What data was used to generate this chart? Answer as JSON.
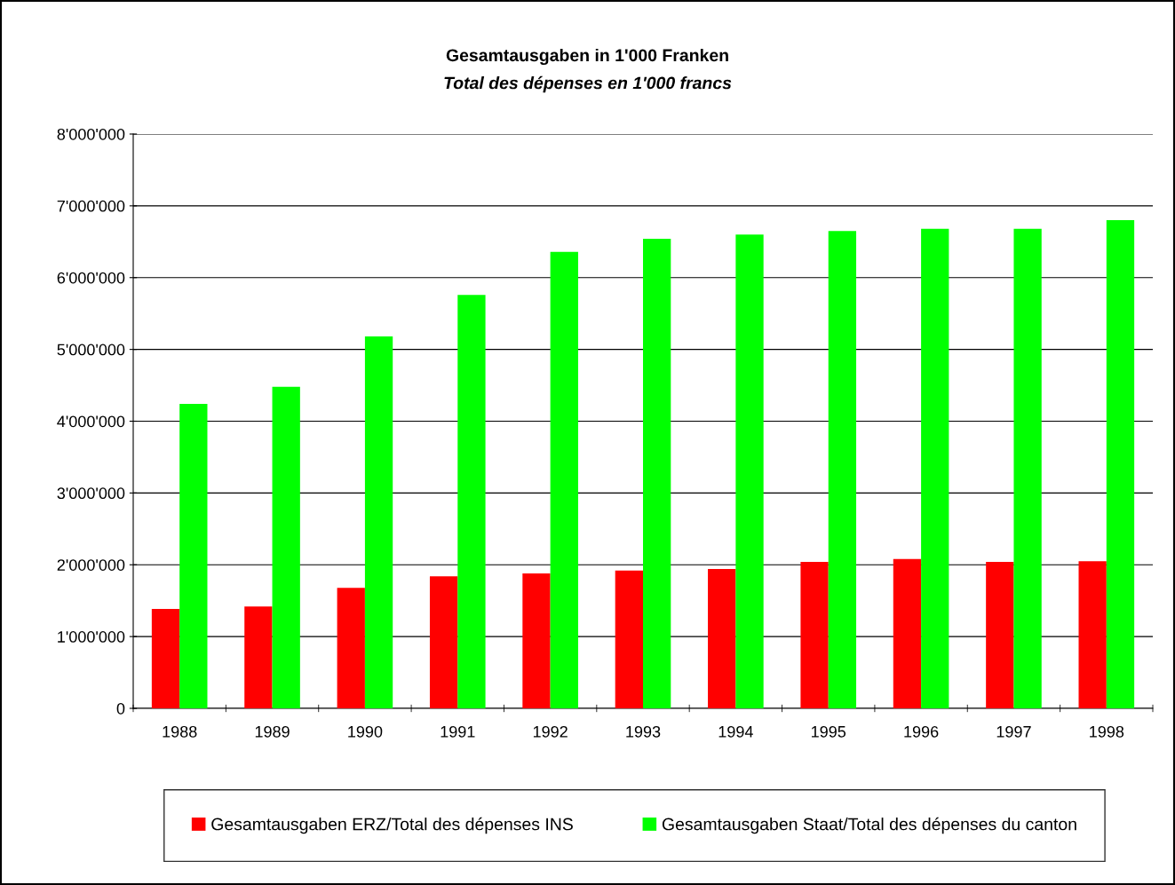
{
  "chart_data": {
    "type": "bar",
    "title": "Gesamtausgaben in 1'000 Franken",
    "subtitle": "Total des dépenses en 1'000 francs",
    "categories": [
      "1988",
      "1989",
      "1990",
      "1991",
      "1992",
      "1993",
      "1994",
      "1995",
      "1996",
      "1997",
      "1998"
    ],
    "series": [
      {
        "name": "Gesamtausgaben ERZ/Total des dépenses INS",
        "color": "#ff0000",
        "values": [
          1385000,
          1420000,
          1680000,
          1840000,
          1880000,
          1920000,
          1940000,
          2040000,
          2080000,
          2040000,
          2050000
        ]
      },
      {
        "name": "Gesamtausgaben Staat/Total des dépenses du canton",
        "color": "#00ff00",
        "values": [
          4240000,
          4480000,
          5180000,
          5760000,
          6360000,
          6540000,
          6600000,
          6650000,
          6680000,
          6680000,
          6800000
        ]
      }
    ],
    "ylim": [
      0,
      8000000
    ],
    "yticks": [
      0,
      {
        "value": 1000000,
        "label": "1'000'000"
      },
      {
        "value": 2000000,
        "label": "2'000'000"
      },
      {
        "value": 3000000,
        "label": "3'000'000"
      },
      {
        "value": 4000000,
        "label": "4'000'000"
      },
      {
        "value": 5000000,
        "label": "5'000'000"
      },
      {
        "value": 6000000,
        "label": "6'000'000"
      },
      {
        "value": 7000000,
        "label": "7'000'000"
      },
      {
        "value": 8000000,
        "label": "8'000'000"
      }
    ],
    "grid": "y",
    "legend": "bottom"
  }
}
